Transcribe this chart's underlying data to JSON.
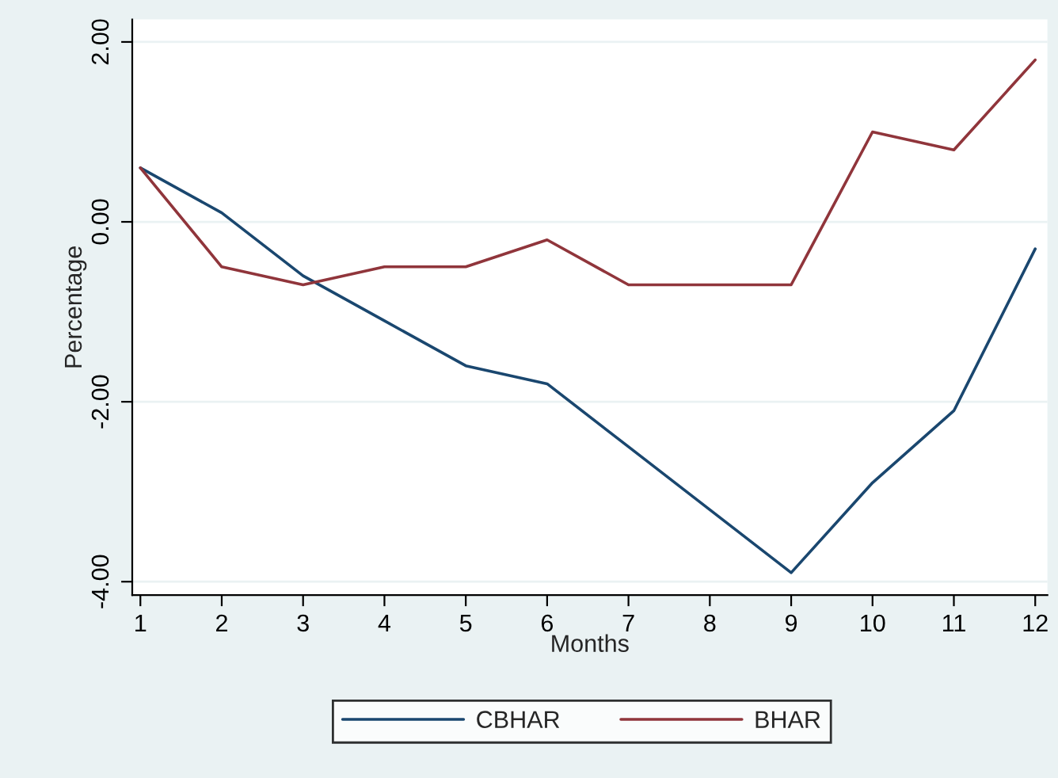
{
  "chart_data": {
    "type": "line",
    "xlabel": "Months",
    "ylabel": "Percentage",
    "x": [
      1,
      2,
      3,
      4,
      5,
      6,
      7,
      8,
      9,
      10,
      11,
      12
    ],
    "series": [
      {
        "name": "CBHAR",
        "color": "#1a476f",
        "values": [
          0.6,
          0.1,
          -0.6,
          -1.1,
          -1.6,
          -1.8,
          -2.5,
          -3.2,
          -3.9,
          -2.9,
          -2.1,
          -0.3
        ]
      },
      {
        "name": "BHAR",
        "color": "#90353b",
        "values": [
          0.6,
          -0.5,
          -0.7,
          -0.5,
          -0.5,
          -0.2,
          -0.7,
          -0.7,
          -0.7,
          1.0,
          0.8,
          1.8
        ]
      }
    ],
    "xlim": [
      0.9,
      12.15
    ],
    "ylim": [
      -4.15,
      2.25
    ],
    "xticks": [
      1,
      2,
      3,
      4,
      5,
      6,
      7,
      8,
      9,
      10,
      11,
      12
    ],
    "yticks": [
      {
        "value": -4,
        "label": "-4.00"
      },
      {
        "value": -2,
        "label": "-2.00"
      },
      {
        "value": 0,
        "label": "0.00"
      },
      {
        "value": 2,
        "label": "2.00"
      }
    ],
    "grid": "y",
    "legend": "bottom",
    "marker": "none",
    "line_style": "solid"
  }
}
